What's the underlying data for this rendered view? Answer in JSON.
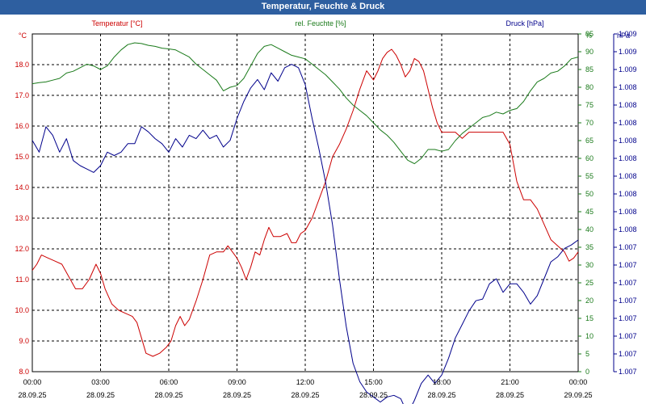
{
  "window": {
    "title": "Temperatur, Feuchte & Druck"
  },
  "colors": {
    "temperature": "#cc0000",
    "humidity": "#1a7a1a",
    "pressure": "#00008b",
    "titlebar": "#2e5fa0"
  },
  "chart_data": {
    "type": "line",
    "title": "Temperatur, Feuchte & Druck",
    "x_ticks": [
      {
        "time": "00:00",
        "date": "28.09.25"
      },
      {
        "time": "03:00",
        "date": "28.09.25"
      },
      {
        "time": "06:00",
        "date": "28.09.25"
      },
      {
        "time": "09:00",
        "date": "28.09.25"
      },
      {
        "time": "12:00",
        "date": "28.09.25"
      },
      {
        "time": "15:00",
        "date": "28.09.25"
      },
      {
        "time": "18:00",
        "date": "28.09.25"
      },
      {
        "time": "21:00",
        "date": "28.09.25"
      },
      {
        "time": "00:00",
        "date": "29.09.25"
      }
    ],
    "xlim": [
      0,
      24
    ],
    "axes": {
      "temperature": {
        "label": "Temperatur [°C]",
        "unit": "°C",
        "ylim": [
          8.0,
          19.0
        ],
        "ticks": [
          "8.0",
          "9.0",
          "10.0",
          "11.0",
          "12.0",
          "13.0",
          "14.0",
          "15.0",
          "16.0",
          "17.0",
          "18.0"
        ]
      },
      "humidity": {
        "label": "rel. Feuchte [%]",
        "unit": "%",
        "ylim": [
          0,
          95
        ],
        "ticks": [
          "0",
          "5",
          "10",
          "15",
          "20",
          "25",
          "30",
          "35",
          "40",
          "45",
          "50",
          "55",
          "60",
          "65",
          "70",
          "75",
          "80",
          "85",
          "90",
          "95"
        ]
      },
      "pressure": {
        "label": "Druck [hPa]",
        "unit": "hPa",
        "ylim": [
          1.007,
          1.009
        ],
        "ticks": [
          "1.007",
          "1.007",
          "1.007",
          "1.007",
          "1.007",
          "1.007",
          "1.007",
          "1.007",
          "1.008",
          "1.008",
          "1.008",
          "1.008",
          "1.008",
          "1.008",
          "1.008",
          "1.008",
          "1.008",
          "1.009",
          "1.009",
          "1.009"
        ]
      }
    },
    "series": [
      {
        "name": "Temperatur [°C]",
        "axis": "temperature",
        "points": [
          [
            0,
            11.3
          ],
          [
            0.2,
            11.5
          ],
          [
            0.4,
            11.8
          ],
          [
            0.7,
            11.7
          ],
          [
            1.0,
            11.6
          ],
          [
            1.3,
            11.5
          ],
          [
            1.6,
            11.1
          ],
          [
            1.9,
            10.7
          ],
          [
            2.2,
            10.7
          ],
          [
            2.5,
            11.0
          ],
          [
            2.8,
            11.5
          ],
          [
            3.0,
            11.2
          ],
          [
            3.2,
            10.7
          ],
          [
            3.5,
            10.2
          ],
          [
            3.8,
            10.0
          ],
          [
            4.1,
            9.9
          ],
          [
            4.4,
            9.8
          ],
          [
            4.6,
            9.6
          ],
          [
            4.8,
            9.1
          ],
          [
            5.0,
            8.6
          ],
          [
            5.3,
            8.5
          ],
          [
            5.6,
            8.6
          ],
          [
            5.9,
            8.8
          ],
          [
            6.1,
            9.0
          ],
          [
            6.3,
            9.5
          ],
          [
            6.5,
            9.8
          ],
          [
            6.7,
            9.5
          ],
          [
            6.9,
            9.7
          ],
          [
            7.2,
            10.3
          ],
          [
            7.5,
            11.0
          ],
          [
            7.8,
            11.8
          ],
          [
            8.1,
            11.9
          ],
          [
            8.4,
            11.9
          ],
          [
            8.6,
            12.1
          ],
          [
            8.8,
            11.9
          ],
          [
            9.0,
            11.7
          ],
          [
            9.2,
            11.4
          ],
          [
            9.4,
            11.0
          ],
          [
            9.6,
            11.4
          ],
          [
            9.8,
            11.9
          ],
          [
            10.0,
            11.8
          ],
          [
            10.2,
            12.3
          ],
          [
            10.4,
            12.7
          ],
          [
            10.6,
            12.4
          ],
          [
            10.9,
            12.4
          ],
          [
            11.2,
            12.5
          ],
          [
            11.4,
            12.2
          ],
          [
            11.6,
            12.2
          ],
          [
            11.8,
            12.5
          ],
          [
            12.0,
            12.6
          ],
          [
            12.3,
            13.0
          ],
          [
            12.6,
            13.6
          ],
          [
            12.9,
            14.2
          ],
          [
            13.2,
            15.0
          ],
          [
            13.5,
            15.4
          ],
          [
            13.8,
            15.9
          ],
          [
            14.1,
            16.5
          ],
          [
            14.4,
            17.2
          ],
          [
            14.7,
            17.8
          ],
          [
            15.0,
            17.5
          ],
          [
            15.2,
            17.8
          ],
          [
            15.4,
            18.2
          ],
          [
            15.6,
            18.4
          ],
          [
            15.8,
            18.5
          ],
          [
            16.0,
            18.3
          ],
          [
            16.2,
            18.0
          ],
          [
            16.4,
            17.6
          ],
          [
            16.6,
            17.8
          ],
          [
            16.8,
            18.2
          ],
          [
            17.0,
            18.1
          ],
          [
            17.2,
            17.8
          ],
          [
            17.4,
            17.2
          ],
          [
            17.6,
            16.6
          ],
          [
            17.8,
            16.1
          ],
          [
            18.0,
            15.8
          ],
          [
            18.3,
            15.8
          ],
          [
            18.6,
            15.8
          ],
          [
            18.9,
            15.6
          ],
          [
            19.2,
            15.8
          ],
          [
            19.5,
            15.8
          ],
          [
            19.8,
            15.8
          ],
          [
            20.1,
            15.8
          ],
          [
            20.4,
            15.8
          ],
          [
            20.7,
            15.8
          ],
          [
            21.0,
            15.4
          ],
          [
            21.3,
            14.2
          ],
          [
            21.6,
            13.6
          ],
          [
            21.9,
            13.6
          ],
          [
            22.2,
            13.3
          ],
          [
            22.5,
            12.8
          ],
          [
            22.8,
            12.3
          ],
          [
            23.1,
            12.1
          ],
          [
            23.4,
            11.9
          ],
          [
            23.6,
            11.6
          ],
          [
            23.8,
            11.7
          ],
          [
            24.0,
            11.9
          ]
        ]
      },
      {
        "name": "rel. Feuchte [%]",
        "axis": "humidity",
        "points": [
          [
            0,
            81
          ],
          [
            0.3,
            81.3
          ],
          [
            0.6,
            81.5
          ],
          [
            0.9,
            82.0
          ],
          [
            1.2,
            82.5
          ],
          [
            1.5,
            84.0
          ],
          [
            1.8,
            84.5
          ],
          [
            2.1,
            85.5
          ],
          [
            2.4,
            86.5
          ],
          [
            2.7,
            86.0
          ],
          [
            3.0,
            85.0
          ],
          [
            3.3,
            86.0
          ],
          [
            3.6,
            88.5
          ],
          [
            3.9,
            90.5
          ],
          [
            4.2,
            92.0
          ],
          [
            4.5,
            92.5
          ],
          [
            4.8,
            92.3
          ],
          [
            5.1,
            91.8
          ],
          [
            5.4,
            91.5
          ],
          [
            5.7,
            91.0
          ],
          [
            6.0,
            90.8
          ],
          [
            6.3,
            90.5
          ],
          [
            6.6,
            89.5
          ],
          [
            6.9,
            88.5
          ],
          [
            7.2,
            86.5
          ],
          [
            7.5,
            85.0
          ],
          [
            7.8,
            83.5
          ],
          [
            8.1,
            82.0
          ],
          [
            8.4,
            79.0
          ],
          [
            8.7,
            80.0
          ],
          [
            9.0,
            80.5
          ],
          [
            9.3,
            82.5
          ],
          [
            9.6,
            86.0
          ],
          [
            9.9,
            89.5
          ],
          [
            10.2,
            91.5
          ],
          [
            10.5,
            92.0
          ],
          [
            10.8,
            91.0
          ],
          [
            11.1,
            90.0
          ],
          [
            11.4,
            89.0
          ],
          [
            11.7,
            88.5
          ],
          [
            12.0,
            88.0
          ],
          [
            12.3,
            86.5
          ],
          [
            12.6,
            85.0
          ],
          [
            12.9,
            83.5
          ],
          [
            13.2,
            81.5
          ],
          [
            13.5,
            79.5
          ],
          [
            13.8,
            77.0
          ],
          [
            14.1,
            75.0
          ],
          [
            14.4,
            73.5
          ],
          [
            14.7,
            72.0
          ],
          [
            15.0,
            70.0
          ],
          [
            15.3,
            68.0
          ],
          [
            15.6,
            66.5
          ],
          [
            15.9,
            64.5
          ],
          [
            16.2,
            62.0
          ],
          [
            16.5,
            59.5
          ],
          [
            16.8,
            58.5
          ],
          [
            17.1,
            60.0
          ],
          [
            17.4,
            62.5
          ],
          [
            17.7,
            62.5
          ],
          [
            18.0,
            62.0
          ],
          [
            18.3,
            62.5
          ],
          [
            18.6,
            65.0
          ],
          [
            18.9,
            67.0
          ],
          [
            19.2,
            68.5
          ],
          [
            19.5,
            70.0
          ],
          [
            19.8,
            71.5
          ],
          [
            20.1,
            72.0
          ],
          [
            20.4,
            73.0
          ],
          [
            20.7,
            72.5
          ],
          [
            21.0,
            73.5
          ],
          [
            21.3,
            74.0
          ],
          [
            21.6,
            76.0
          ],
          [
            21.9,
            79.0
          ],
          [
            22.2,
            81.5
          ],
          [
            22.5,
            82.5
          ],
          [
            22.8,
            84.0
          ],
          [
            23.1,
            84.5
          ],
          [
            23.4,
            86.0
          ],
          [
            23.7,
            88.0
          ],
          [
            24.0,
            88.5
          ]
        ]
      },
      {
        "name": "Druck [hPa]",
        "axis": "pressure",
        "points": [
          [
            0,
            1.00837
          ],
          [
            0.3,
            1.0083
          ],
          [
            0.6,
            1.00845
          ],
          [
            0.9,
            1.0084
          ],
          [
            1.2,
            1.0083
          ],
          [
            1.5,
            1.00838
          ],
          [
            1.8,
            1.00825
          ],
          [
            2.1,
            1.00822
          ],
          [
            2.4,
            1.0082
          ],
          [
            2.7,
            1.00818
          ],
          [
            3.0,
            1.00822
          ],
          [
            3.3,
            1.0083
          ],
          [
            3.6,
            1.00828
          ],
          [
            3.9,
            1.0083
          ],
          [
            4.2,
            1.00835
          ],
          [
            4.5,
            1.00835
          ],
          [
            4.8,
            1.00845
          ],
          [
            5.1,
            1.00842
          ],
          [
            5.4,
            1.00838
          ],
          [
            5.7,
            1.00835
          ],
          [
            6.0,
            1.0083
          ],
          [
            6.3,
            1.00838
          ],
          [
            6.6,
            1.00833
          ],
          [
            6.9,
            1.0084
          ],
          [
            7.2,
            1.00838
          ],
          [
            7.5,
            1.00843
          ],
          [
            7.8,
            1.00838
          ],
          [
            8.1,
            1.0084
          ],
          [
            8.4,
            1.00833
          ],
          [
            8.7,
            1.00837
          ],
          [
            9.0,
            1.0085
          ],
          [
            9.3,
            1.0086
          ],
          [
            9.6,
            1.00868
          ],
          [
            9.9,
            1.00873
          ],
          [
            10.2,
            1.00867
          ],
          [
            10.5,
            1.00877
          ],
          [
            10.8,
            1.00872
          ],
          [
            11.1,
            1.0088
          ],
          [
            11.4,
            1.00882
          ],
          [
            11.7,
            1.0088
          ],
          [
            12.0,
            1.0087
          ],
          [
            12.3,
            1.0085
          ],
          [
            12.6,
            1.00832
          ],
          [
            12.9,
            1.00812
          ],
          [
            13.2,
            1.00787
          ],
          [
            13.5,
            1.00755
          ],
          [
            13.8,
            1.00727
          ],
          [
            14.1,
            1.00705
          ],
          [
            14.4,
            1.00694
          ],
          [
            14.7,
            1.00688
          ],
          [
            15.0,
            1.00685
          ],
          [
            15.3,
            1.00682
          ],
          [
            15.6,
            1.00685
          ],
          [
            15.9,
            1.00686
          ],
          [
            16.2,
            1.00684
          ],
          [
            16.5,
            1.00675
          ],
          [
            16.8,
            1.00683
          ],
          [
            17.1,
            1.00693
          ],
          [
            17.4,
            1.00698
          ],
          [
            17.7,
            1.00693
          ],
          [
            18.0,
            1.00698
          ],
          [
            18.3,
            1.00708
          ],
          [
            18.6,
            1.0072
          ],
          [
            18.9,
            1.00728
          ],
          [
            19.2,
            1.00736
          ],
          [
            19.5,
            1.00742
          ],
          [
            19.8,
            1.00743
          ],
          [
            20.1,
            1.00752
          ],
          [
            20.4,
            1.00755
          ],
          [
            20.7,
            1.00747
          ],
          [
            21.0,
            1.00752
          ],
          [
            21.3,
            1.00752
          ],
          [
            21.6,
            1.00747
          ],
          [
            21.9,
            1.0074
          ],
          [
            22.2,
            1.00745
          ],
          [
            22.5,
            1.00755
          ],
          [
            22.8,
            1.00765
          ],
          [
            23.1,
            1.00768
          ],
          [
            23.4,
            1.00773
          ],
          [
            23.7,
            1.00775
          ],
          [
            24.0,
            1.00778
          ]
        ]
      }
    ]
  }
}
